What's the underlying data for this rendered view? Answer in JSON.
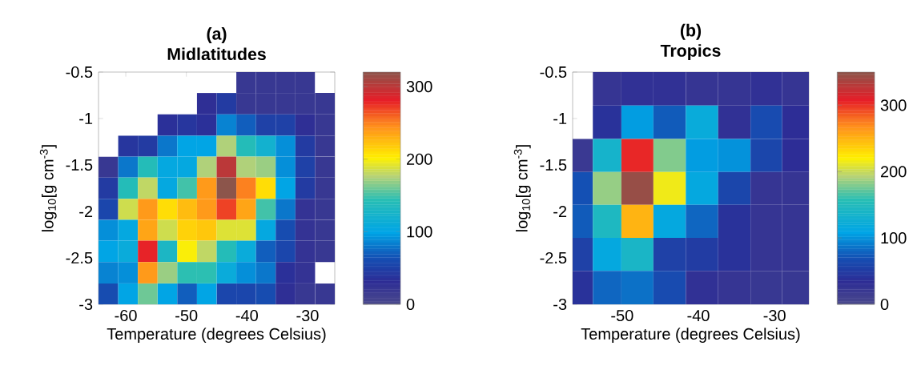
{
  "chart_data": [
    {
      "type": "heatmap",
      "title": "(a)",
      "subtitle": "Midlatitudes",
      "xlabel": "Temperature (degrees Celsius)",
      "ylabel": "log$_{10}$[g cm$^{-3}$]",
      "x": [
        -62.9,
        -59.6,
        -56.4,
        -53.1,
        -49.9,
        -46.6,
        -43.4,
        -40.1,
        -36.9,
        -33.6,
        -30.4,
        -27.1
      ],
      "y": [
        -0.61,
        -0.84,
        -1.07,
        -1.3,
        -1.52,
        -1.75,
        -1.98,
        -2.2,
        -2.43,
        -2.66,
        -2.89
      ],
      "xlim": [
        -64.5,
        -25.5
      ],
      "xticks": [
        -60,
        -50,
        -40,
        -30
      ],
      "ylim": [
        -3,
        -0.5
      ],
      "yticks": [
        -3,
        -2.5,
        -2,
        -1.5,
        -1,
        -0.5
      ],
      "clim": [
        0,
        320
      ],
      "cticks": [
        0,
        100,
        200,
        300
      ],
      "cells": [
        [
          null,
          null,
          null,
          null,
          null,
          null,
          null,
          20,
          20,
          20,
          20,
          null
        ],
        [
          null,
          null,
          null,
          null,
          null,
          30,
          45,
          20,
          20,
          20,
          20,
          20
        ],
        [
          null,
          null,
          null,
          35,
          40,
          35,
          85,
          70,
          50,
          50,
          30,
          20
        ],
        [
          null,
          40,
          45,
          80,
          100,
          100,
          175,
          140,
          120,
          90,
          45,
          20
        ],
        [
          20,
          80,
          140,
          105,
          105,
          175,
          300,
          175,
          170,
          90,
          50,
          20
        ],
        [
          45,
          140,
          180,
          105,
          150,
          240,
          320,
          250,
          210,
          100,
          45,
          20
        ],
        [
          55,
          185,
          240,
          210,
          225,
          240,
          270,
          235,
          150,
          80,
          25,
          20
        ],
        [
          90,
          105,
          235,
          185,
          215,
          220,
          190,
          190,
          105,
          60,
          25,
          20
        ],
        [
          100,
          110,
          280,
          130,
          200,
          180,
          140,
          110,
          70,
          55,
          25,
          20
        ],
        [
          85,
          90,
          240,
          170,
          145,
          145,
          110,
          90,
          80,
          35,
          25,
          null
        ],
        [
          60,
          100,
          160,
          100,
          70,
          100,
          55,
          55,
          60,
          30,
          20,
          20
        ]
      ]
    },
    {
      "type": "heatmap",
      "title": "(b)",
      "subtitle": "Tropics",
      "xlabel": "Temperature (degrees Celsius)",
      "ylabel": "log$_{10}$[g cm$^{-3}$]",
      "x": [
        -55.5,
        -52.2,
        -48.0,
        -43.8,
        -39.5,
        -35.3,
        -31.0,
        -27.0
      ],
      "y": [
        -0.68,
        -1.04,
        -1.4,
        -1.75,
        -2.11,
        -2.46,
        -2.82
      ],
      "xlim": [
        -56.5,
        -25.5
      ],
      "xticks": [
        -50,
        -40,
        -30
      ],
      "ylim": [
        -3,
        -0.5
      ],
      "yticks": [
        -3,
        -2.5,
        -2,
        -1.5,
        -1,
        -0.5
      ],
      "clim": [
        0,
        350
      ],
      "cticks": [
        0,
        100,
        200,
        300
      ],
      "cells": [
        [
          null,
          25,
          30,
          30,
          25,
          25,
          30,
          25
        ],
        [
          null,
          40,
          105,
          75,
          120,
          30,
          65,
          35
        ],
        [
          20,
          135,
          305,
          180,
          105,
          100,
          60,
          35
        ],
        [
          70,
          185,
          345,
          215,
          115,
          60,
          25,
          25
        ],
        [
          75,
          145,
          250,
          115,
          80,
          40,
          25,
          25
        ],
        [
          55,
          115,
          140,
          55,
          50,
          40,
          25,
          25
        ],
        [
          40,
          80,
          85,
          65,
          30,
          25,
          22,
          22
        ]
      ]
    }
  ]
}
